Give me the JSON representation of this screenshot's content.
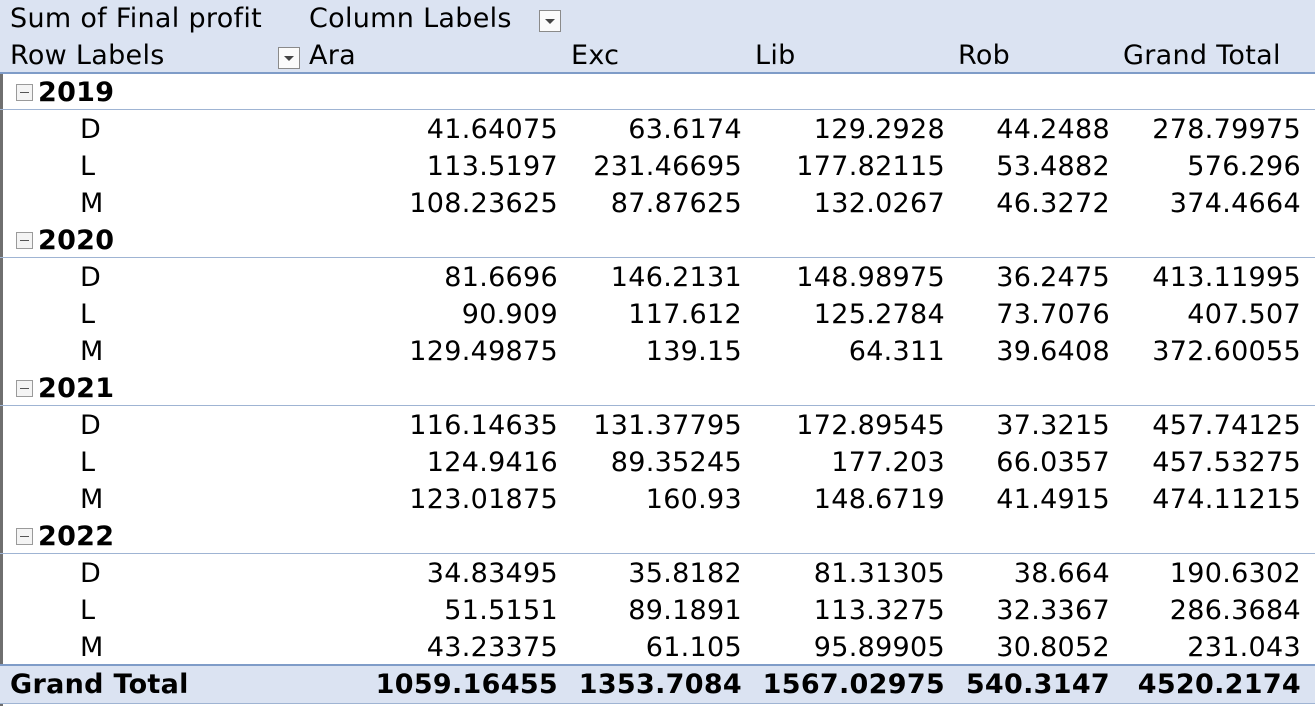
{
  "header": {
    "values_field": "Sum of Final profit",
    "column_labels": "Column Labels",
    "row_labels": "Row Labels",
    "columns": [
      "Ara",
      "Exc",
      "Lib",
      "Rob",
      "Grand Total"
    ]
  },
  "groups": [
    {
      "year": "2019",
      "rows": [
        {
          "label": "D",
          "values": [
            "41.64075",
            "63.6174",
            "129.2928",
            "44.2488",
            "278.79975"
          ]
        },
        {
          "label": "L",
          "values": [
            "113.5197",
            "231.46695",
            "177.82115",
            "53.4882",
            "576.296"
          ]
        },
        {
          "label": "M",
          "values": [
            "108.23625",
            "87.87625",
            "132.0267",
            "46.3272",
            "374.4664"
          ]
        }
      ]
    },
    {
      "year": "2020",
      "rows": [
        {
          "label": "D",
          "values": [
            "81.6696",
            "146.2131",
            "148.98975",
            "36.2475",
            "413.11995"
          ]
        },
        {
          "label": "L",
          "values": [
            "90.909",
            "117.612",
            "125.2784",
            "73.7076",
            "407.507"
          ]
        },
        {
          "label": "M",
          "values": [
            "129.49875",
            "139.15",
            "64.311",
            "39.6408",
            "372.60055"
          ]
        }
      ]
    },
    {
      "year": "2021",
      "rows": [
        {
          "label": "D",
          "values": [
            "116.14635",
            "131.37795",
            "172.89545",
            "37.3215",
            "457.74125"
          ]
        },
        {
          "label": "L",
          "values": [
            "124.9416",
            "89.35245",
            "177.203",
            "66.0357",
            "457.53275"
          ]
        },
        {
          "label": "M",
          "values": [
            "123.01875",
            "160.93",
            "148.6719",
            "41.4915",
            "474.11215"
          ]
        }
      ]
    },
    {
      "year": "2022",
      "rows": [
        {
          "label": "D",
          "values": [
            "34.83495",
            "35.8182",
            "81.31305",
            "38.664",
            "190.6302"
          ]
        },
        {
          "label": "L",
          "values": [
            "51.5151",
            "89.1891",
            "113.3275",
            "32.3367",
            "286.3684"
          ]
        },
        {
          "label": "M",
          "values": [
            "43.23375",
            "61.105",
            "95.89905",
            "30.8052",
            "231.043"
          ]
        }
      ]
    }
  ],
  "grand_total": {
    "label": "Grand Total",
    "values": [
      "1059.16455",
      "1353.7084",
      "1567.02975",
      "540.3147",
      "4520.2174"
    ]
  },
  "icons": {
    "dropdown": "chevron-down-icon",
    "collapse": "collapse-minus-icon"
  },
  "colors": {
    "header_band": "#dbe3f2",
    "rule": "#9fb4d3"
  }
}
